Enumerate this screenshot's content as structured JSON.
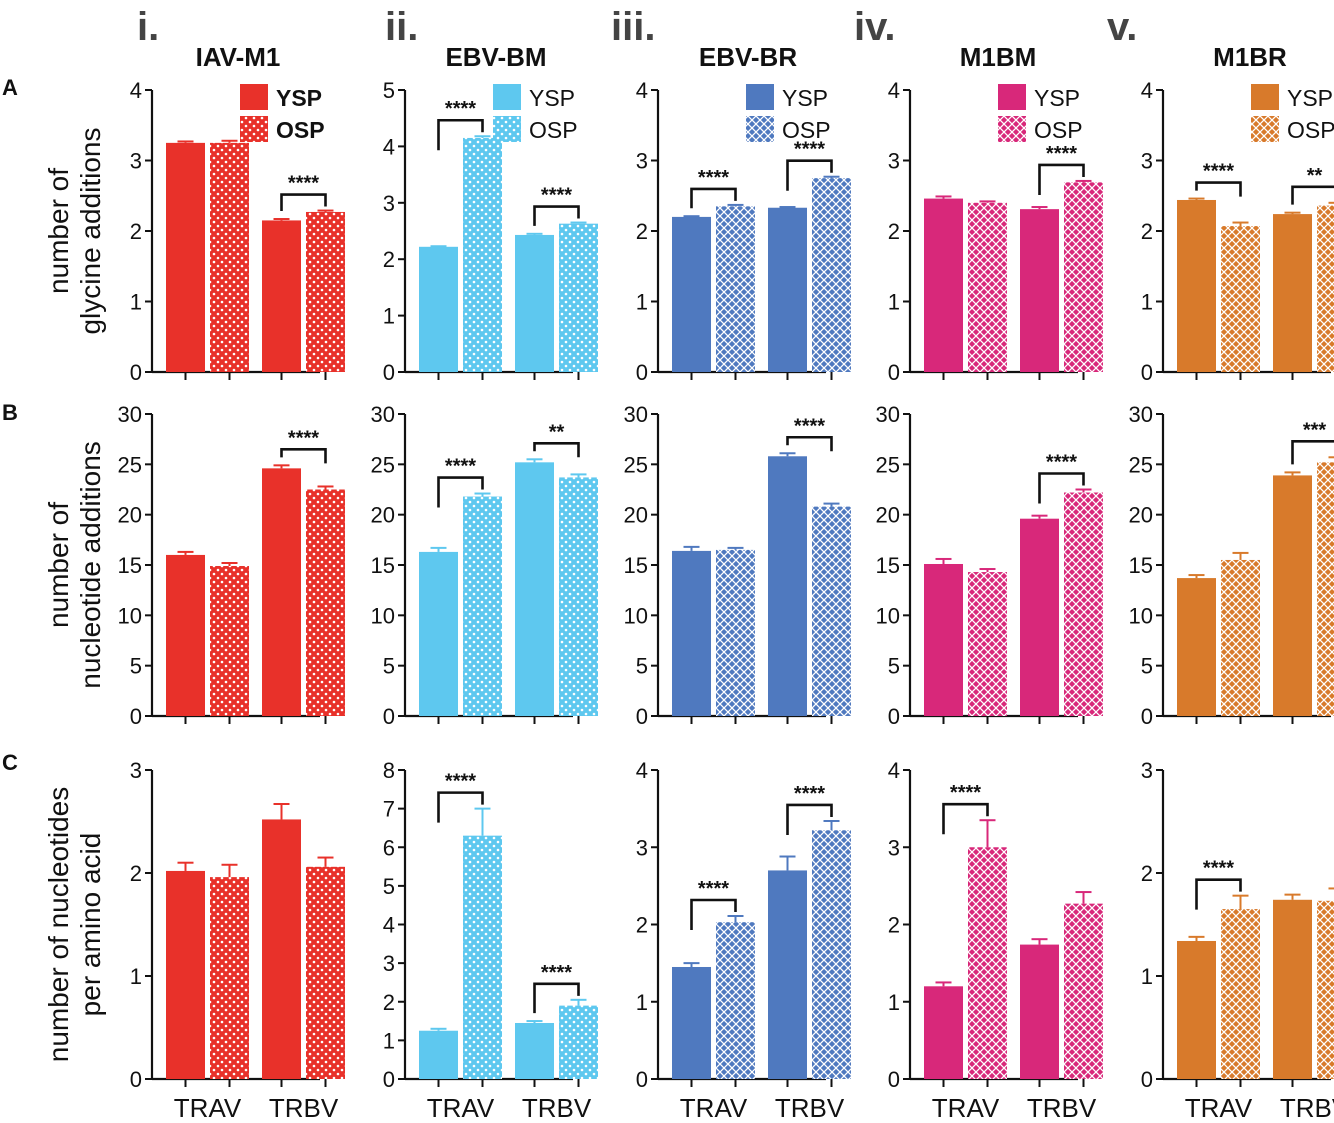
{
  "columns": [
    {
      "roman": "i.",
      "title": "IAV-M1",
      "color": "#e8312a",
      "legend_bold": true
    },
    {
      "roman": "ii.",
      "title": "EBV-BM",
      "color": "#5ec8ef",
      "legend_bold": false
    },
    {
      "roman": "iii.",
      "title": "EBV-BR",
      "color": "#4f79bf",
      "legend_bold": false
    },
    {
      "roman": "iv.",
      "title": "M1BM",
      "color": "#d8287a",
      "legend_bold": false
    },
    {
      "roman": "v.",
      "title": "M1BR",
      "color": "#d87a2b",
      "legend_bold": false
    }
  ],
  "rows": [
    {
      "letter": "A",
      "ylabel": [
        "number of",
        "glycine additions"
      ]
    },
    {
      "letter": "B",
      "ylabel": [
        "number of",
        "nucleotide additions"
      ]
    },
    {
      "letter": "C",
      "ylabel": [
        "number of nucleotides",
        "per amino acid"
      ]
    }
  ],
  "legend": [
    "YSP",
    "OSP"
  ],
  "chart_data": [
    {
      "type": "bar",
      "row": 0,
      "col": 0,
      "title": "IAV-M1",
      "categories": [
        "TRAV",
        "TRBV"
      ],
      "ylim": [
        0,
        4
      ],
      "yticks": [
        0,
        1,
        2,
        3,
        4
      ],
      "series": [
        {
          "name": "YSP",
          "values": [
            3.25,
            2.15
          ],
          "errors": [
            0.02,
            0.02
          ]
        },
        {
          "name": "OSP",
          "values": [
            3.25,
            2.27
          ],
          "errors": [
            0.03,
            0.02
          ]
        }
      ],
      "annotations": [
        {
          "category": 1,
          "label": "****"
        }
      ],
      "legend": true
    },
    {
      "type": "bar",
      "row": 0,
      "col": 1,
      "title": "EBV-BM",
      "categories": [
        "TRAV",
        "TRBV"
      ],
      "ylim": [
        0,
        5
      ],
      "yticks": [
        0,
        1,
        2,
        3,
        4,
        5
      ],
      "series": [
        {
          "name": "YSP",
          "values": [
            2.22,
            2.43
          ],
          "errors": [
            0.01,
            0.02
          ]
        },
        {
          "name": "OSP",
          "values": [
            4.15,
            2.63
          ],
          "errors": [
            0.03,
            0.02
          ]
        }
      ],
      "annotations": [
        {
          "category": 0,
          "label": "****"
        },
        {
          "category": 1,
          "label": "****"
        }
      ],
      "legend": true
    },
    {
      "type": "bar",
      "row": 0,
      "col": 2,
      "title": "EBV-BR",
      "categories": [
        "TRAV",
        "TRBV"
      ],
      "ylim": [
        0,
        4
      ],
      "yticks": [
        0,
        1,
        2,
        3,
        4
      ],
      "series": [
        {
          "name": "YSP",
          "values": [
            2.2,
            2.33
          ],
          "errors": [
            0.01,
            0.01
          ]
        },
        {
          "name": "OSP",
          "values": [
            2.35,
            2.75
          ],
          "errors": [
            0.02,
            0.02
          ]
        }
      ],
      "annotations": [
        {
          "category": 0,
          "label": "****"
        },
        {
          "category": 1,
          "label": "****"
        }
      ],
      "legend": true
    },
    {
      "type": "bar",
      "row": 0,
      "col": 3,
      "title": "M1BM",
      "categories": [
        "TRAV",
        "TRBV"
      ],
      "ylim": [
        0,
        4
      ],
      "yticks": [
        0,
        1,
        2,
        3,
        4
      ],
      "series": [
        {
          "name": "YSP",
          "values": [
            2.46,
            2.31
          ],
          "errors": [
            0.03,
            0.03
          ]
        },
        {
          "name": "OSP",
          "values": [
            2.4,
            2.69
          ],
          "errors": [
            0.02,
            0.02
          ]
        }
      ],
      "annotations": [
        {
          "category": 1,
          "label": "****"
        }
      ],
      "legend": true
    },
    {
      "type": "bar",
      "row": 0,
      "col": 4,
      "title": "M1BR",
      "categories": [
        "TRAV",
        "TRBV"
      ],
      "ylim": [
        0,
        4
      ],
      "yticks": [
        0,
        1,
        2,
        3,
        4
      ],
      "series": [
        {
          "name": "YSP",
          "values": [
            2.44,
            2.24
          ],
          "errors": [
            0.02,
            0.02
          ]
        },
        {
          "name": "OSP",
          "values": [
            2.07,
            2.36
          ],
          "errors": [
            0.05,
            0.04
          ]
        }
      ],
      "annotations": [
        {
          "category": 0,
          "label": "****"
        },
        {
          "category": 1,
          "label": "**"
        }
      ],
      "legend": true
    },
    {
      "type": "bar",
      "row": 1,
      "col": 0,
      "title": "IAV-M1",
      "categories": [
        "TRAV",
        "TRBV"
      ],
      "ylim": [
        0,
        30
      ],
      "yticks": [
        0,
        5,
        10,
        15,
        20,
        25,
        30
      ],
      "series": [
        {
          "name": "YSP",
          "values": [
            16.0,
            24.6
          ],
          "errors": [
            0.3,
            0.3
          ]
        },
        {
          "name": "OSP",
          "values": [
            14.9,
            22.5
          ],
          "errors": [
            0.3,
            0.3
          ]
        }
      ],
      "annotations": [
        {
          "category": 1,
          "label": "****"
        }
      ],
      "legend": false
    },
    {
      "type": "bar",
      "row": 1,
      "col": 1,
      "title": "EBV-BM",
      "categories": [
        "TRAV",
        "TRBV"
      ],
      "ylim": [
        0,
        30
      ],
      "yticks": [
        0,
        5,
        10,
        15,
        20,
        25,
        30
      ],
      "series": [
        {
          "name": "YSP",
          "values": [
            16.3,
            25.2
          ],
          "errors": [
            0.4,
            0.3
          ]
        },
        {
          "name": "OSP",
          "values": [
            21.8,
            23.7
          ],
          "errors": [
            0.3,
            0.3
          ]
        }
      ],
      "annotations": [
        {
          "category": 0,
          "label": "****"
        },
        {
          "category": 1,
          "label": "**"
        }
      ],
      "legend": false
    },
    {
      "type": "bar",
      "row": 1,
      "col": 2,
      "title": "EBV-BR",
      "categories": [
        "TRAV",
        "TRBV"
      ],
      "ylim": [
        0,
        30
      ],
      "yticks": [
        0,
        5,
        10,
        15,
        20,
        25,
        30
      ],
      "series": [
        {
          "name": "YSP",
          "values": [
            16.4,
            25.8
          ],
          "errors": [
            0.4,
            0.3
          ]
        },
        {
          "name": "OSP",
          "values": [
            16.5,
            20.8
          ],
          "errors": [
            0.2,
            0.3
          ]
        }
      ],
      "annotations": [
        {
          "category": 1,
          "label": "****"
        }
      ],
      "legend": false
    },
    {
      "type": "bar",
      "row": 1,
      "col": 3,
      "title": "M1BM",
      "categories": [
        "TRAV",
        "TRBV"
      ],
      "ylim": [
        0,
        30
      ],
      "yticks": [
        0,
        5,
        10,
        15,
        20,
        25,
        30
      ],
      "series": [
        {
          "name": "YSP",
          "values": [
            15.1,
            19.6
          ],
          "errors": [
            0.5,
            0.3
          ]
        },
        {
          "name": "OSP",
          "values": [
            14.3,
            22.2
          ],
          "errors": [
            0.3,
            0.3
          ]
        }
      ],
      "annotations": [
        {
          "category": 1,
          "label": "****"
        }
      ],
      "legend": false
    },
    {
      "type": "bar",
      "row": 1,
      "col": 4,
      "title": "M1BR",
      "categories": [
        "TRAV",
        "TRBV"
      ],
      "ylim": [
        0,
        30
      ],
      "yticks": [
        0,
        5,
        10,
        15,
        20,
        25,
        30
      ],
      "series": [
        {
          "name": "YSP",
          "values": [
            13.7,
            23.9
          ],
          "errors": [
            0.3,
            0.3
          ]
        },
        {
          "name": "OSP",
          "values": [
            15.5,
            25.2
          ],
          "errors": [
            0.7,
            0.5
          ]
        }
      ],
      "annotations": [
        {
          "category": 1,
          "label": "***"
        }
      ],
      "legend": false
    },
    {
      "type": "bar",
      "row": 2,
      "col": 0,
      "title": "IAV-M1",
      "categories": [
        "TRAV",
        "TRBV"
      ],
      "ylim": [
        0,
        3
      ],
      "yticks": [
        0,
        1,
        2,
        3
      ],
      "series": [
        {
          "name": "YSP",
          "values": [
            2.02,
            2.52
          ],
          "errors": [
            0.08,
            0.15
          ]
        },
        {
          "name": "OSP",
          "values": [
            1.96,
            2.06
          ],
          "errors": [
            0.12,
            0.09
          ]
        }
      ],
      "annotations": [],
      "legend": false
    },
    {
      "type": "bar",
      "row": 2,
      "col": 1,
      "title": "EBV-BM",
      "categories": [
        "TRAV",
        "TRBV"
      ],
      "ylim": [
        0,
        8
      ],
      "yticks": [
        0,
        1,
        2,
        3,
        4,
        5,
        6,
        7,
        8
      ],
      "series": [
        {
          "name": "YSP",
          "values": [
            1.25,
            1.45
          ],
          "errors": [
            0.05,
            0.05
          ]
        },
        {
          "name": "OSP",
          "values": [
            6.3,
            1.9
          ],
          "errors": [
            0.7,
            0.15
          ]
        }
      ],
      "annotations": [
        {
          "category": 0,
          "label": "****"
        },
        {
          "category": 1,
          "label": "****"
        }
      ],
      "legend": false
    },
    {
      "type": "bar",
      "row": 2,
      "col": 2,
      "title": "EBV-BR",
      "categories": [
        "TRAV",
        "TRBV"
      ],
      "ylim": [
        0,
        4
      ],
      "yticks": [
        0,
        1,
        2,
        3,
        4
      ],
      "series": [
        {
          "name": "YSP",
          "values": [
            1.45,
            2.7
          ],
          "errors": [
            0.05,
            0.18
          ]
        },
        {
          "name": "OSP",
          "values": [
            2.03,
            3.22
          ],
          "errors": [
            0.08,
            0.12
          ]
        }
      ],
      "annotations": [
        {
          "category": 0,
          "label": "****"
        },
        {
          "category": 1,
          "label": "****"
        }
      ],
      "legend": false
    },
    {
      "type": "bar",
      "row": 2,
      "col": 3,
      "title": "M1BM",
      "categories": [
        "TRAV",
        "TRBV"
      ],
      "ylim": [
        0,
        4
      ],
      "yticks": [
        0,
        1,
        2,
        3,
        4
      ],
      "series": [
        {
          "name": "YSP",
          "values": [
            1.2,
            1.74
          ],
          "errors": [
            0.05,
            0.07
          ]
        },
        {
          "name": "OSP",
          "values": [
            3.0,
            2.27
          ],
          "errors": [
            0.35,
            0.15
          ]
        }
      ],
      "annotations": [
        {
          "category": 0,
          "label": "****"
        }
      ],
      "legend": false
    },
    {
      "type": "bar",
      "row": 2,
      "col": 4,
      "title": "M1BR",
      "categories": [
        "TRAV",
        "TRBV"
      ],
      "ylim": [
        0,
        3
      ],
      "yticks": [
        0,
        1,
        2,
        3
      ],
      "series": [
        {
          "name": "YSP",
          "values": [
            1.34,
            1.74
          ],
          "errors": [
            0.04,
            0.05
          ]
        },
        {
          "name": "OSP",
          "values": [
            1.65,
            1.73
          ],
          "errors": [
            0.13,
            0.12
          ]
        }
      ],
      "annotations": [
        {
          "category": 0,
          "label": "****"
        }
      ],
      "legend": false
    }
  ]
}
